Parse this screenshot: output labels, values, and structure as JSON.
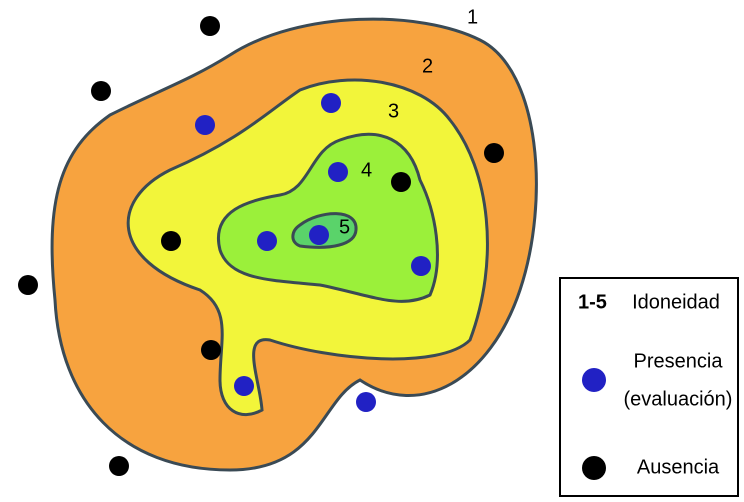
{
  "zones": [
    {
      "label": "1"
    },
    {
      "label": "2"
    },
    {
      "label": "3"
    },
    {
      "label": "4"
    },
    {
      "label": "5"
    }
  ],
  "legend": {
    "range": "1-5",
    "range_label": "Idoneidad",
    "presence": [
      "Presencia",
      "(evaluación)"
    ],
    "absence": "Ausencia"
  }
}
